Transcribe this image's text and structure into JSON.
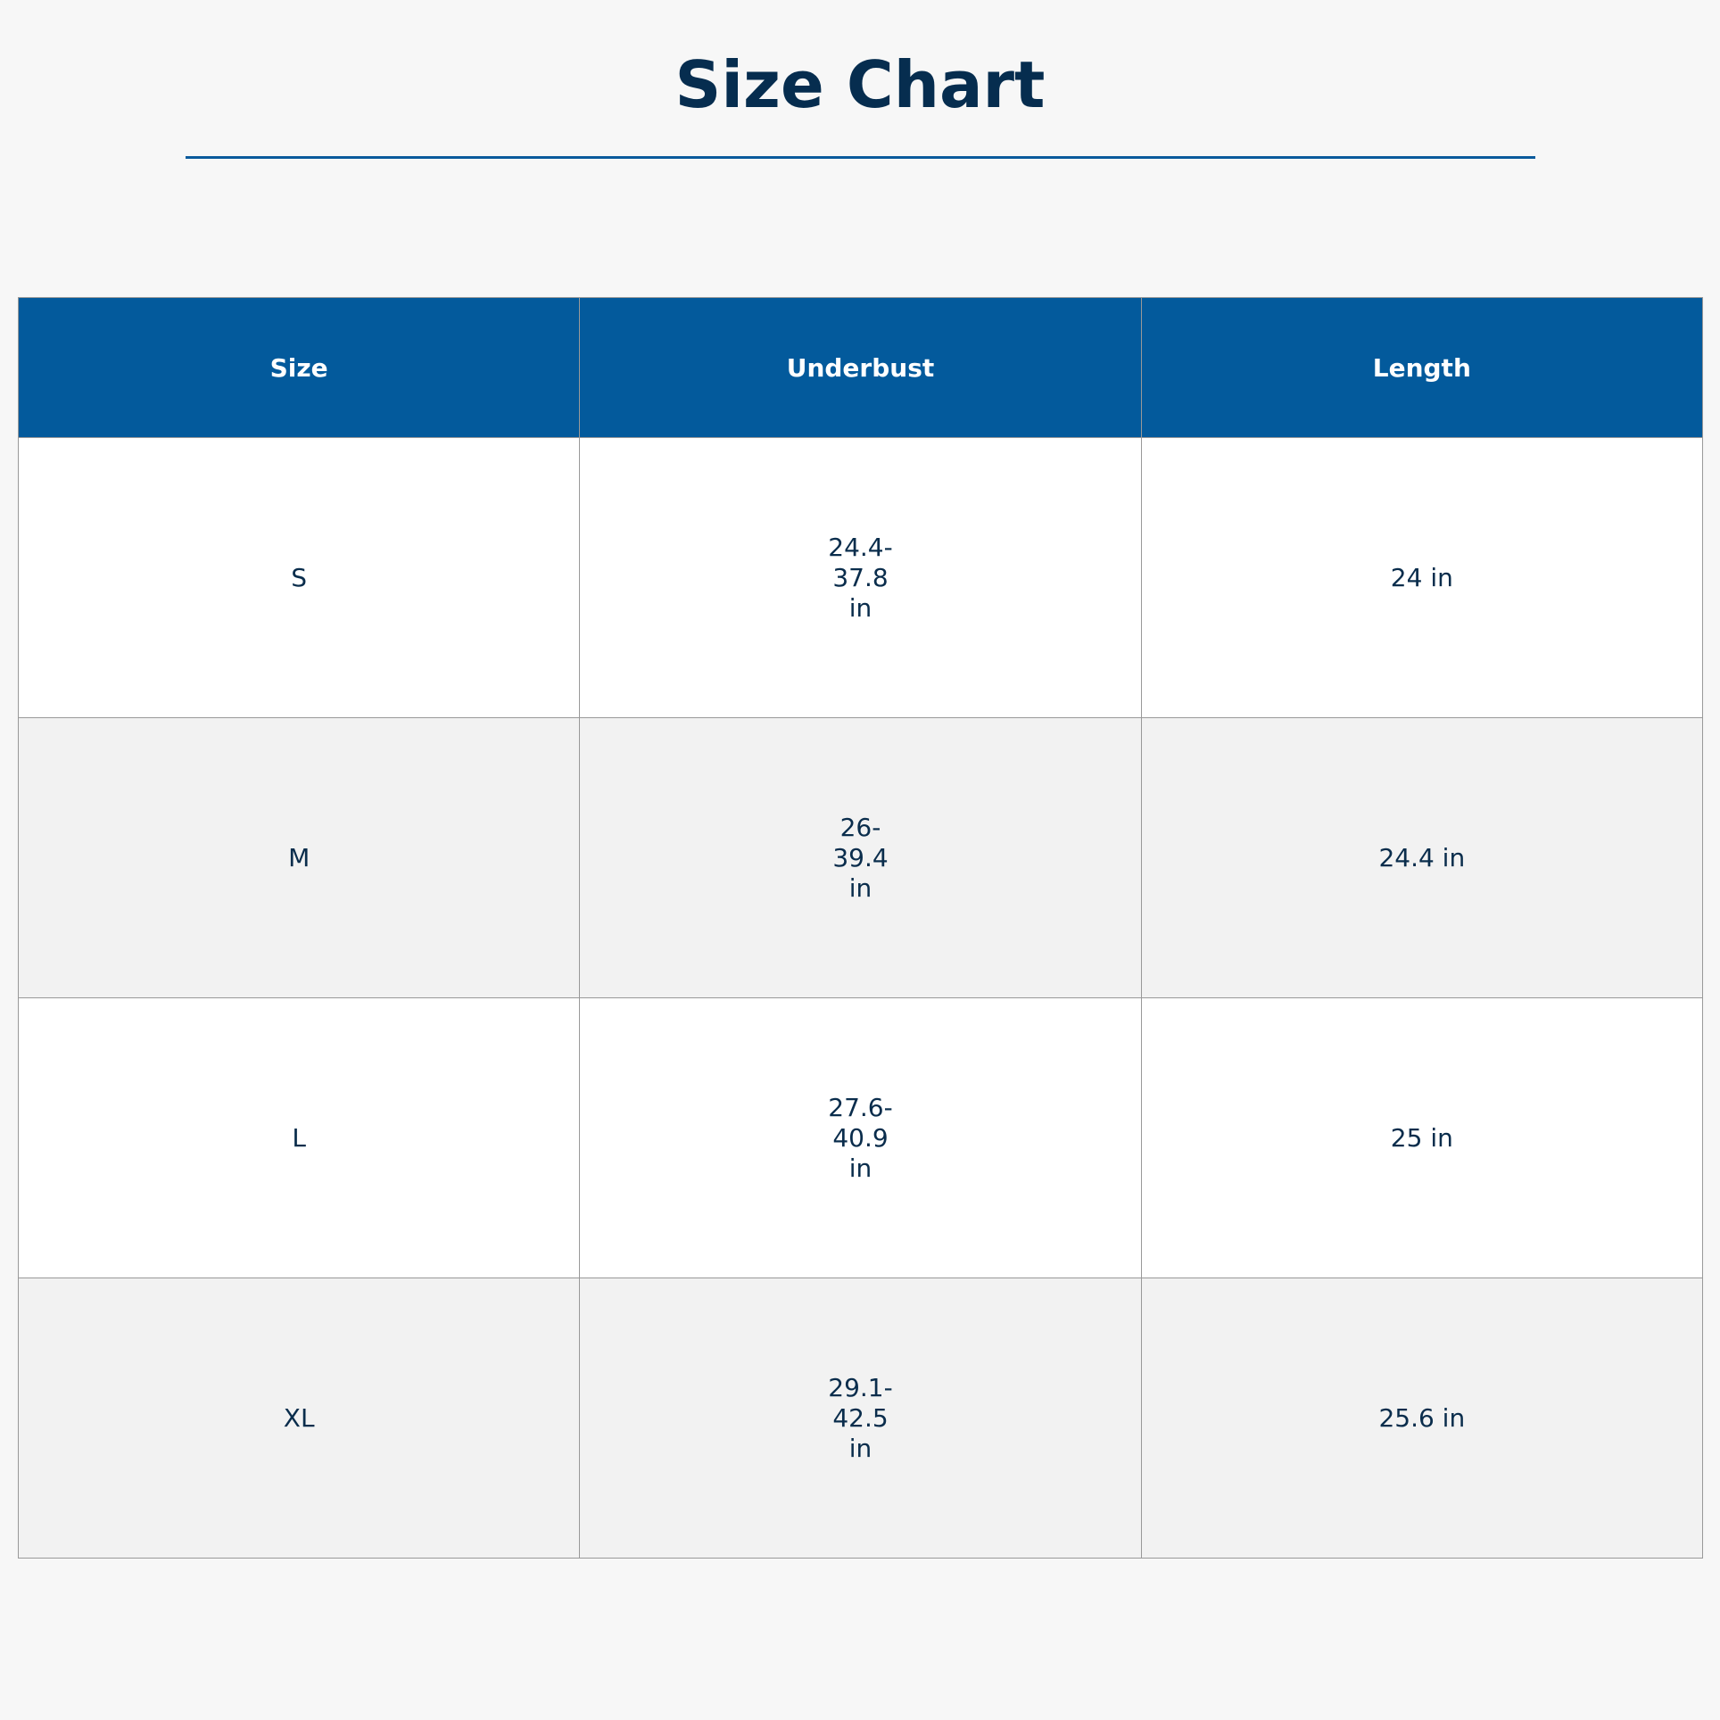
{
  "title": "Size Chart",
  "colors": {
    "header_bg": "#035a9c",
    "title": "#062d4f",
    "accent_rule": "#0a5a9c",
    "alt_row": "#f2f2f2"
  },
  "table": {
    "headers": [
      "Size",
      "Underbust",
      "Length"
    ],
    "rows": [
      {
        "size": "S",
        "underbust": "24.4-37.8 in",
        "length": "24 in"
      },
      {
        "size": "M",
        "underbust": "26-39.4 in",
        "length": "24.4 in"
      },
      {
        "size": "L",
        "underbust": "27.6-40.9 in",
        "length": "25 in"
      },
      {
        "size": "XL",
        "underbust": "29.1-42.5 in",
        "length": "25.6 in"
      }
    ]
  }
}
